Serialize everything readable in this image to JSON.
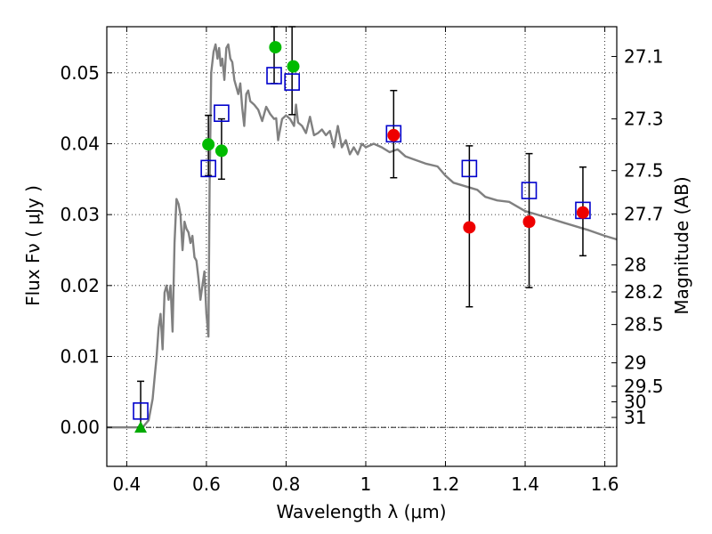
{
  "chart_data": {
    "type": "scatter",
    "xlabel": "Wavelength  λ (μm)",
    "ylabel_left": "Flux  Fν  ( μJy )",
    "ylabel_right": "Magnitude (AB)",
    "xlim": [
      0.35,
      1.63
    ],
    "ylim": [
      -0.0055,
      0.0565
    ],
    "grid": true,
    "x_ticks": [
      0.4,
      0.6,
      0.8,
      1.0,
      1.2,
      1.4,
      1.6
    ],
    "x_tick_labels": [
      "0.4",
      "0.6",
      "0.8",
      "1",
      "1.2",
      "1.4",
      "1.6"
    ],
    "y_ticks": [
      0.0,
      0.01,
      0.02,
      0.03,
      0.04,
      0.05
    ],
    "y_tick_labels": [
      "0.00",
      "0.01",
      "0.02",
      "0.03",
      "0.04",
      "0.05"
    ],
    "right_ticks": [
      {
        "label": "27.1",
        "flux": 0.0523
      },
      {
        "label": "27.3",
        "flux": 0.0435
      },
      {
        "label": "27.5",
        "flux": 0.0362
      },
      {
        "label": "27.7",
        "flux": 0.0301
      },
      {
        "label": "28",
        "flux": 0.0229
      },
      {
        "label": "28.2",
        "flux": 0.0191
      },
      {
        "label": "28.5",
        "flux": 0.0145
      },
      {
        "label": "29",
        "flux": 0.0091
      },
      {
        "label": "29.5",
        "flux": 0.0058
      },
      {
        "label": "30",
        "flux": 0.0036
      },
      {
        "label": "31",
        "flux": 0.0014
      }
    ],
    "model_sed": {
      "color": "#808080",
      "x": [
        0.35,
        0.44,
        0.455,
        0.465,
        0.47,
        0.475,
        0.48,
        0.485,
        0.49,
        0.495,
        0.5,
        0.505,
        0.51,
        0.515,
        0.52,
        0.525,
        0.53,
        0.535,
        0.54,
        0.545,
        0.55,
        0.555,
        0.56,
        0.565,
        0.57,
        0.575,
        0.58,
        0.585,
        0.59,
        0.595,
        0.6,
        0.605,
        0.608,
        0.612,
        0.618,
        0.623,
        0.628,
        0.632,
        0.636,
        0.64,
        0.645,
        0.65,
        0.655,
        0.66,
        0.665,
        0.67,
        0.675,
        0.68,
        0.685,
        0.69,
        0.695,
        0.7,
        0.705,
        0.71,
        0.72,
        0.73,
        0.74,
        0.75,
        0.76,
        0.77,
        0.775,
        0.78,
        0.785,
        0.79,
        0.8,
        0.81,
        0.82,
        0.825,
        0.83,
        0.84,
        0.85,
        0.86,
        0.87,
        0.88,
        0.89,
        0.9,
        0.91,
        0.92,
        0.93,
        0.94,
        0.95,
        0.96,
        0.97,
        0.98,
        0.99,
        1.0,
        1.02,
        1.04,
        1.06,
        1.08,
        1.1,
        1.12,
        1.15,
        1.18,
        1.2,
        1.22,
        1.25,
        1.28,
        1.3,
        1.33,
        1.36,
        1.4,
        1.43,
        1.46,
        1.5,
        1.53,
        1.56,
        1.6,
        1.63
      ],
      "y": [
        0.0,
        0.0,
        0.001,
        0.004,
        0.007,
        0.01,
        0.014,
        0.016,
        0.011,
        0.019,
        0.02,
        0.018,
        0.02,
        0.0135,
        0.026,
        0.0322,
        0.0315,
        0.03,
        0.025,
        0.029,
        0.028,
        0.0275,
        0.026,
        0.027,
        0.024,
        0.0235,
        0.021,
        0.018,
        0.02,
        0.022,
        0.016,
        0.0128,
        0.034,
        0.05,
        0.053,
        0.054,
        0.052,
        0.0535,
        0.051,
        0.052,
        0.049,
        0.0535,
        0.054,
        0.052,
        0.0515,
        0.049,
        0.048,
        0.047,
        0.0485,
        0.045,
        0.0425,
        0.047,
        0.0475,
        0.046,
        0.0455,
        0.0448,
        0.0432,
        0.0452,
        0.0442,
        0.0435,
        0.0436,
        0.0405,
        0.042,
        0.0435,
        0.044,
        0.0435,
        0.0425,
        0.0455,
        0.043,
        0.0425,
        0.0415,
        0.0438,
        0.0412,
        0.0415,
        0.042,
        0.0412,
        0.0418,
        0.0395,
        0.0425,
        0.0395,
        0.0405,
        0.0385,
        0.0395,
        0.0385,
        0.04,
        0.0395,
        0.04,
        0.0395,
        0.0388,
        0.0392,
        0.0382,
        0.0378,
        0.0372,
        0.0368,
        0.0355,
        0.0345,
        0.034,
        0.0335,
        0.0325,
        0.032,
        0.0318,
        0.0305,
        0.03,
        0.0295,
        0.0288,
        0.0283,
        0.0278,
        0.027,
        0.0265
      ]
    },
    "series": [
      {
        "marker": "square-open",
        "color": "#0000cc",
        "points": [
          {
            "x": 0.435,
            "y": 0.0023
          },
          {
            "x": 0.605,
            "y": 0.0365
          },
          {
            "x": 0.638,
            "y": 0.0443
          },
          {
            "x": 0.77,
            "y": 0.0496
          },
          {
            "x": 0.815,
            "y": 0.0487
          },
          {
            "x": 1.07,
            "y": 0.0414
          },
          {
            "x": 1.26,
            "y": 0.0365
          },
          {
            "x": 1.41,
            "y": 0.0334
          },
          {
            "x": 1.545,
            "y": 0.0306
          }
        ]
      },
      {
        "marker": "circle",
        "color": "#00bb00",
        "points": [
          {
            "x": 0.605,
            "y": 0.0399
          },
          {
            "x": 0.638,
            "y": 0.039
          },
          {
            "x": 0.773,
            "y": 0.0536
          },
          {
            "x": 0.818,
            "y": 0.0509
          }
        ]
      },
      {
        "marker": "circle",
        "color": "#ee0000",
        "points": [
          {
            "x": 1.07,
            "y": 0.0412
          },
          {
            "x": 1.26,
            "y": 0.0282
          },
          {
            "x": 1.41,
            "y": 0.029
          },
          {
            "x": 1.545,
            "y": 0.0303
          }
        ]
      },
      {
        "marker": "triangle",
        "color": "#00aa00",
        "points": [
          {
            "x": 0.435,
            "y": 0.0
          }
        ]
      }
    ],
    "error_bars": [
      {
        "x": 0.435,
        "low": 0.0,
        "high": 0.0065
      },
      {
        "x": 0.605,
        "low": 0.0355,
        "high": 0.044
      },
      {
        "x": 0.638,
        "low": 0.035,
        "high": 0.0435
      },
      {
        "x": 0.77,
        "low": 0.0485,
        "high": 0.0565
      },
      {
        "x": 0.815,
        "low": 0.0441,
        "high": 0.0565
      },
      {
        "x": 1.07,
        "low": 0.0352,
        "high": 0.0475
      },
      {
        "x": 1.26,
        "low": 0.017,
        "high": 0.0397
      },
      {
        "x": 1.41,
        "low": 0.0197,
        "high": 0.0386
      },
      {
        "x": 1.545,
        "low": 0.0242,
        "high": 0.0367
      }
    ],
    "zero_line": true
  }
}
